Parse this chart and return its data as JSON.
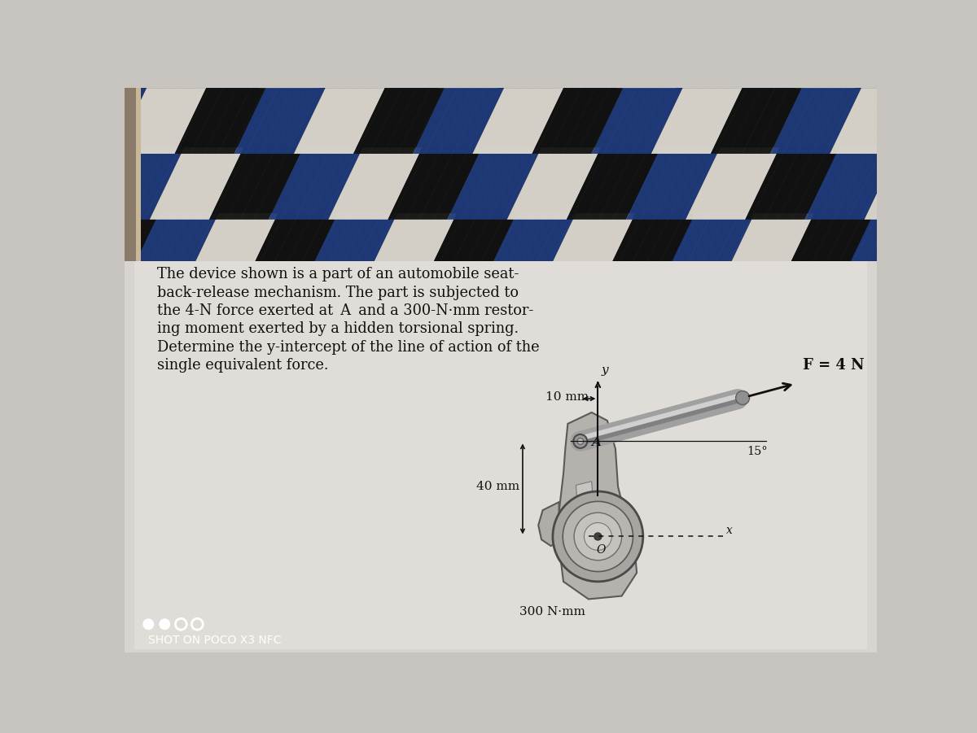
{
  "bg_color": "#c8c5c0",
  "mat_bg_dark": "#1a1a1a",
  "mat_colors": [
    "#1e3a7a",
    "#e8e2d0",
    "#111111"
  ],
  "paper_bg": "#dcdad6",
  "paper_light": "#e8e6e2",
  "main_text": [
    "The device shown is a part of an automobile seat-",
    "back-release mechanism. The part is subjected to",
    "the 4-N force exerted at  A  and a 300-N·mm restor-",
    "ing moment exerted by a hidden torsional spring.",
    "Determine the y-intercept of the line of action of the",
    "single equivalent force."
  ],
  "F_label": "F = 4 N",
  "angle_label": "15°",
  "dist1_label": "10 mm",
  "dist2_label": "40 mm",
  "moment_label": "300 N·mm",
  "A_label": "A",
  "O_label": "O",
  "x_label": "x",
  "y_label": "y",
  "watermark_text": "SHOT ON POCO X3 NFC",
  "watermark_color": "#ffffff",
  "text_color": "#111111",
  "body_color": "#b8b5b0",
  "body_edge": "#666666",
  "hub_color": "#aaa8a4",
  "hub_edge": "#555555"
}
